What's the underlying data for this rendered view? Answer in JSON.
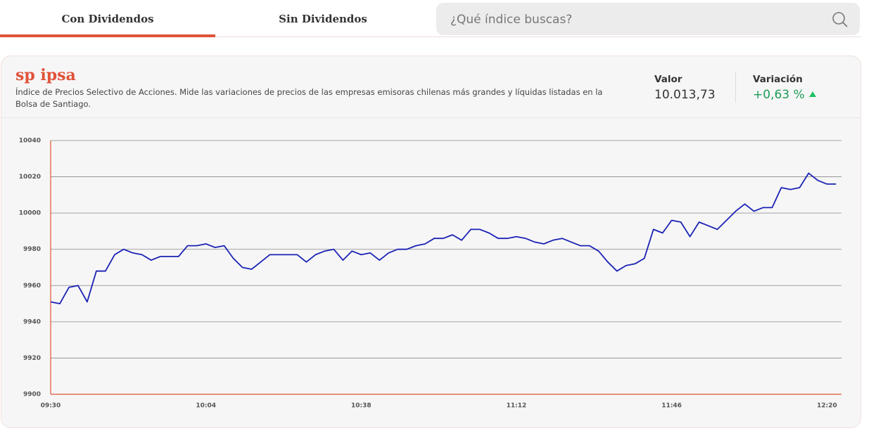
{
  "tabs": [
    "Con Dividendos",
    "Sin Dividendos"
  ],
  "search_placeholder": "¿Qué índice buscas?",
  "index": {
    "name": "sp ipsa",
    "description": "Índice de Precios Selectivo de Acciones. Mide las variaciones de precios de las empresas emisoras chilenas más grandes y líquidas listadas en la Bolsa de Santiago.",
    "value_label": "Valor",
    "value": "10.013,73",
    "variation_label": "Variación",
    "variation": "+0,63 %"
  },
  "chart_data": {
    "type": "line",
    "color": "#1a22b5",
    "categories": [
      "09:30",
      null,
      null,
      null,
      null,
      null,
      null,
      null,
      null,
      null,
      null,
      null,
      null,
      null,
      null,
      null,
      null,
      "10:04",
      null,
      null,
      null,
      null,
      null,
      null,
      null,
      null,
      null,
      null,
      null,
      null,
      null,
      null,
      null,
      null,
      "10:38",
      null,
      null,
      null,
      null,
      null,
      null,
      null,
      null,
      null,
      null,
      null,
      null,
      null,
      null,
      null,
      null,
      "11:12",
      null,
      null,
      null,
      null,
      null,
      null,
      null,
      null,
      null,
      null,
      null,
      null,
      null,
      null,
      null,
      null,
      "11:46",
      null,
      null,
      null,
      null,
      null,
      null,
      null,
      null,
      null,
      null,
      null,
      null,
      null,
      null,
      null,
      null,
      "12:20",
      null
    ],
    "values": [
      9951,
      9950,
      9959,
      9960,
      9951,
      9968,
      9968,
      9977,
      9980,
      9978,
      9977,
      9974,
      9976,
      9976,
      9976,
      9982,
      9982,
      9983,
      9981,
      9982,
      9975,
      9970,
      9969,
      9973,
      9977,
      9977,
      9977,
      9977,
      9973,
      9977,
      9979,
      9980,
      9974,
      9979,
      9977,
      9978,
      9974,
      9978,
      9980,
      9980,
      9982,
      9983,
      9986,
      9986,
      9988,
      9985,
      9991,
      9991,
      9989,
      9986,
      9986,
      9987,
      9986,
      9984,
      9983,
      9985,
      9986,
      9984,
      9982,
      9982,
      9979,
      9973,
      9968,
      9971,
      9972,
      9975,
      9991,
      9989,
      9996,
      9995,
      9987,
      9995,
      9993,
      9991,
      9996,
      10001,
      10005,
      10001,
      10003,
      10003,
      10014,
      10013,
      10014,
      10022,
      10018,
      10016,
      10016
    ],
    "ylim": [
      9900,
      10040
    ],
    "yticks": [
      9900,
      9920,
      9940,
      9960,
      9980,
      10000,
      10020,
      10040
    ],
    "grid": true
  }
}
